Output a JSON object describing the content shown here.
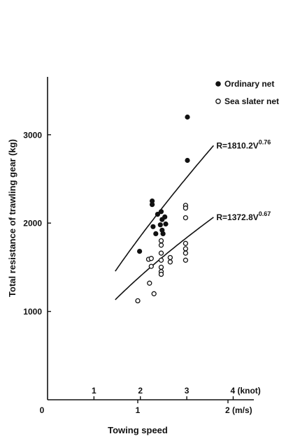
{
  "chart_data": {
    "type": "scatter",
    "title": "",
    "xlabel": "Towing speed",
    "ylabel": "Total resistance of trawling gear (kg)",
    "x_unit": "m/s",
    "xlim": [
      0,
      2.3
    ],
    "ylim": [
      0,
      3650
    ],
    "y_ticks": [
      1000,
      2000,
      3000
    ],
    "x_ticks_ms": [
      "0",
      "1",
      "2 (m/s)"
    ],
    "x_ticks_ms_values": [
      0,
      1,
      2
    ],
    "x_ticks_knot": [
      "1",
      "2",
      "3",
      "4 (knot)"
    ],
    "x_ticks_knot_values": [
      1,
      2,
      3,
      4
    ],
    "grid": false,
    "legend_position": "top-right",
    "series": [
      {
        "name": "Ordinary net",
        "marker": "filled-circle",
        "color": "#111111",
        "points": [
          [
            1.02,
            1680
          ],
          [
            1.16,
            2210
          ],
          [
            1.16,
            2250
          ],
          [
            1.17,
            1960
          ],
          [
            1.2,
            1880
          ],
          [
            1.22,
            2100
          ],
          [
            1.25,
            1980
          ],
          [
            1.26,
            2130
          ],
          [
            1.27,
            2040
          ],
          [
            1.27,
            1920
          ],
          [
            1.28,
            1880
          ],
          [
            1.3,
            2070
          ],
          [
            1.31,
            1990
          ],
          [
            1.55,
            3200
          ],
          [
            1.55,
            2710
          ]
        ],
        "fit": {
          "label": "R=1810.2V",
          "exponent": "0.76",
          "a": 1810.2,
          "b": 0.76,
          "x_range": [
            0.75,
            1.84
          ]
        }
      },
      {
        "name": "Sea slater net",
        "marker": "open-circle",
        "color": "#111111",
        "points": [
          [
            1.0,
            1120
          ],
          [
            1.12,
            1590
          ],
          [
            1.13,
            1320
          ],
          [
            1.15,
            1600
          ],
          [
            1.15,
            1510
          ],
          [
            1.18,
            1200
          ],
          [
            1.26,
            1800
          ],
          [
            1.26,
            1750
          ],
          [
            1.26,
            1660
          ],
          [
            1.26,
            1580
          ],
          [
            1.26,
            1500
          ],
          [
            1.26,
            1450
          ],
          [
            1.26,
            1420
          ],
          [
            1.36,
            1610
          ],
          [
            1.36,
            1560
          ],
          [
            1.53,
            2200
          ],
          [
            1.53,
            2170
          ],
          [
            1.53,
            2060
          ],
          [
            1.53,
            1770
          ],
          [
            1.53,
            1710
          ],
          [
            1.53,
            1660
          ],
          [
            1.53,
            1580
          ]
        ],
        "fit": {
          "label": "R=1372.8V",
          "exponent": "0.67",
          "a": 1372.8,
          "b": 0.67,
          "x_range": [
            0.75,
            1.84
          ]
        }
      }
    ]
  }
}
